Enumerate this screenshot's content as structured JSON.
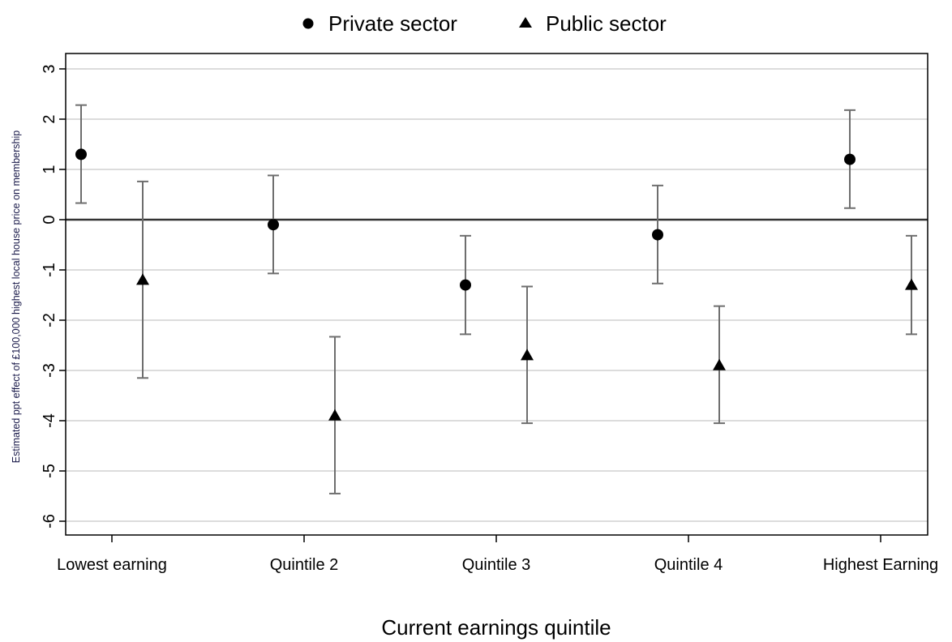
{
  "chart_data": {
    "type": "scatter",
    "title": "",
    "xlabel": "Current earnings quintile",
    "ylabel": "Estimated ppt effect of £100,000 highest local house price on membership",
    "categories": [
      "Lowest earning",
      "Quintile 2",
      "Quintile 3",
      "Quintile 4",
      "Highest Earning"
    ],
    "ylim": [
      -6.3,
      3.3
    ],
    "yticks": [
      3,
      2,
      1,
      0,
      -1,
      -2,
      -3,
      -4,
      -5,
      -6
    ],
    "grid": true,
    "legend_position": "top-center",
    "reference_line": 0,
    "series": [
      {
        "name": "Private sector",
        "marker": "circle",
        "values": [
          1.3,
          -0.1,
          -1.3,
          -0.3,
          1.2
        ],
        "ci_low": [
          0.33,
          -1.07,
          -2.28,
          -1.27,
          0.23
        ],
        "ci_high": [
          2.28,
          0.88,
          -0.32,
          0.68,
          2.18
        ]
      },
      {
        "name": "Public sector",
        "marker": "triangle",
        "values": [
          -1.2,
          -3.9,
          -2.7,
          -2.9,
          -1.3
        ],
        "ci_low": [
          -3.15,
          -5.45,
          -4.05,
          -4.05,
          -2.28
        ],
        "ci_high": [
          0.76,
          -2.33,
          -1.33,
          -1.72,
          -0.32
        ]
      }
    ],
    "colors": {
      "marker": "#000000",
      "errorbar": "#6e6e6e",
      "grid": "#dcdcdc",
      "zero_line": "#333333",
      "axis": "#000000"
    }
  }
}
